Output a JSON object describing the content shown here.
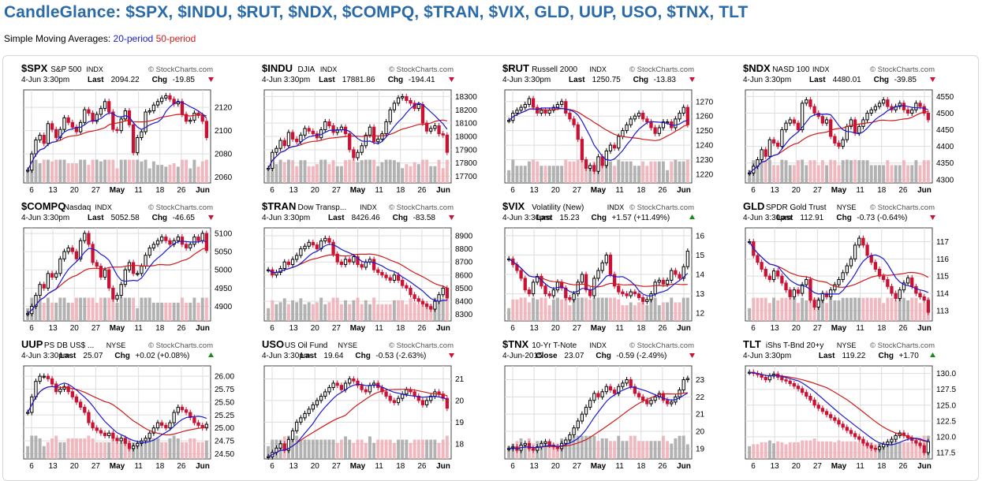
{
  "page": {
    "title": "CandleGlance: $SPX, $INDU, $RUT, $NDX, $COMPQ, $TRAN, $VIX, GLD, UUP, USO, $TNX, TLT",
    "legend_prefix": "Simple Moving Averages:",
    "legend_ma20": "20-period",
    "legend_ma50": "50-period",
    "watermark": "© StockCharts.com"
  },
  "colors": {
    "title": "#2a6aa8",
    "up": "#000000",
    "down": "#cc1133",
    "ma20": "#1a1ad0",
    "ma50": "#d01a1a",
    "volume": "#aaaaaa",
    "volume_down": "#f0b0b8",
    "grid": "#dddddd"
  },
  "chart_data": [
    {
      "symbol": "$SPX",
      "name": "S&P 500",
      "exchange": "INDX",
      "date": "4-Jun 3:30pm",
      "last_label": "Last",
      "last": "2094.22",
      "chg_label": "Chg",
      "chg": "-19.85",
      "direction": "down",
      "y_ticks": [
        "2120",
        "2100",
        "2080",
        "2060"
      ],
      "y_tick_values": [
        2120,
        2100,
        2080,
        2060
      ],
      "ylim": [
        2055,
        2135
      ],
      "x_ticks": [
        "6",
        "13",
        "20",
        "27",
        "May",
        "11",
        "18",
        "26",
        "Jun"
      ],
      "closes": [
        2066,
        2080,
        2092,
        2096,
        2089,
        2106,
        2101,
        2094,
        2101,
        2111,
        2107,
        2103,
        2099,
        2107,
        2118,
        2115,
        2108,
        2114,
        2119,
        2125,
        2116,
        2101,
        2100,
        2110,
        2117,
        2105,
        2081,
        2094,
        2099,
        2116,
        2117,
        2122,
        2125,
        2128,
        2130,
        2127,
        2123,
        2125,
        2114,
        2108,
        2109,
        2115,
        2113,
        2108,
        2094
      ]
    },
    {
      "symbol": "$INDU",
      "name": "DJIA",
      "exchange": "INDX",
      "date": "4-Jun 3:30pm",
      "last_label": "Last",
      "last": "17881.86",
      "chg_label": "Chg",
      "chg": "-194.41",
      "direction": "down",
      "y_ticks": [
        "18300",
        "18200",
        "18100",
        "18000",
        "17900",
        "17800",
        "17700"
      ],
      "y_tick_values": [
        18300,
        18200,
        18100,
        18000,
        17900,
        17800,
        17700
      ],
      "ylim": [
        17650,
        18350
      ],
      "x_ticks": [
        "6",
        "13",
        "20",
        "27",
        "May",
        "11",
        "18",
        "26",
        "Jun"
      ],
      "closes": [
        17760,
        17880,
        17910,
        17970,
        17930,
        18030,
        17980,
        17960,
        18010,
        18060,
        18040,
        18020,
        17990,
        18050,
        18110,
        18080,
        18030,
        18050,
        18070,
        18020,
        17900,
        17840,
        17880,
        17930,
        18010,
        18070,
        17960,
        17980,
        18020,
        18110,
        18200,
        18250,
        18290,
        18300,
        18270,
        18250,
        18210,
        18240,
        18100,
        18040,
        18060,
        18080,
        18020,
        18010,
        17880
      ]
    },
    {
      "symbol": "$RUT",
      "name": "Russell 2000",
      "exchange": "INDX",
      "date": "4-Jun 3:30pm",
      "last_label": "Last",
      "last": "1250.75",
      "chg_label": "Chg",
      "chg": "-13.83",
      "direction": "down",
      "y_ticks": [
        "1270",
        "1260",
        "1250",
        "1240",
        "1230",
        "1220"
      ],
      "y_tick_values": [
        1270,
        1260,
        1250,
        1240,
        1230,
        1220
      ],
      "ylim": [
        1214,
        1278
      ],
      "x_ticks": [
        "6",
        "13",
        "20",
        "27",
        "May",
        "11",
        "18",
        "26",
        "Jun"
      ],
      "closes": [
        1257,
        1262,
        1264,
        1266,
        1268,
        1272,
        1266,
        1262,
        1264,
        1262,
        1264,
        1266,
        1268,
        1270,
        1262,
        1258,
        1254,
        1244,
        1230,
        1224,
        1226,
        1222,
        1232,
        1226,
        1236,
        1240,
        1238,
        1246,
        1250,
        1254,
        1258,
        1260,
        1262,
        1258,
        1256,
        1252,
        1248,
        1252,
        1256,
        1256,
        1252,
        1258,
        1262,
        1266,
        1254
      ]
    },
    {
      "symbol": "$NDX",
      "name": "NASD 100",
      "exchange": "INDX",
      "date": "4-Jun 3:30pm",
      "last_label": "Last",
      "last": "4480.01",
      "chg_label": "Chg",
      "chg": "-39.85",
      "direction": "down",
      "y_ticks": [
        "4550",
        "4500",
        "4450",
        "4400",
        "4350",
        "4300"
      ],
      "y_tick_values": [
        4550,
        4500,
        4450,
        4400,
        4350,
        4300
      ],
      "ylim": [
        4290,
        4570
      ],
      "x_ticks": [
        "6",
        "13",
        "20",
        "27",
        "May",
        "11",
        "18",
        "26",
        "Jun"
      ],
      "closes": [
        4320,
        4340,
        4360,
        4390,
        4370,
        4420,
        4410,
        4400,
        4450,
        4470,
        4480,
        4470,
        4450,
        4530,
        4540,
        4520,
        4500,
        4490,
        4470,
        4480,
        4430,
        4410,
        4400,
        4420,
        4460,
        4480,
        4440,
        4460,
        4480,
        4500,
        4510,
        4520,
        4530,
        4540,
        4520,
        4510,
        4520,
        4530,
        4510,
        4500,
        4510,
        4530,
        4520,
        4500,
        4480
      ]
    },
    {
      "symbol": "$COMPQ",
      "name": "Nasdaq",
      "exchange": "INDX",
      "date": "4-Jun 3:30pm",
      "last_label": "Last",
      "last": "5052.58",
      "chg_label": "Chg",
      "chg": "-46.65",
      "direction": "down",
      "y_ticks": [
        "5100",
        "5050",
        "5000",
        "4950",
        "4900"
      ],
      "y_tick_values": [
        5100,
        5050,
        5000,
        4950,
        4900
      ],
      "ylim": [
        4860,
        5115
      ],
      "x_ticks": [
        "6",
        "13",
        "20",
        "27",
        "May",
        "11",
        "18",
        "26",
        "Jun"
      ],
      "closes": [
        4880,
        4900,
        4930,
        4960,
        4950,
        4990,
        4980,
        4990,
        5030,
        5050,
        5060,
        5050,
        5030,
        5080,
        5100,
        5070,
        5020,
        5010,
        4980,
        5000,
        4950,
        4920,
        4930,
        4960,
        5000,
        5020,
        4990,
        4990,
        5010,
        5040,
        5060,
        5070,
        5080,
        5090,
        5080,
        5070,
        5080,
        5090,
        5070,
        5060,
        5070,
        5090,
        5080,
        5100,
        5053
      ]
    },
    {
      "symbol": "$TRAN",
      "name": "Dow Transp...",
      "exchange": "INDX",
      "date": "4-Jun 3:30pm",
      "last_label": "Last",
      "last": "8426.46",
      "chg_label": "Chg",
      "chg": "-83.58",
      "direction": "down",
      "y_ticks": [
        "8900",
        "8800",
        "8700",
        "8600",
        "8500",
        "8400",
        "8300"
      ],
      "y_tick_values": [
        8900,
        8800,
        8700,
        8600,
        8500,
        8400,
        8300
      ],
      "ylim": [
        8250,
        8960
      ],
      "x_ticks": [
        "6",
        "13",
        "20",
        "27",
        "May",
        "11",
        "18",
        "26",
        "Jun"
      ],
      "closes": [
        8640,
        8600,
        8620,
        8650,
        8700,
        8680,
        8720,
        8750,
        8800,
        8820,
        8850,
        8830,
        8800,
        8860,
        8880,
        8850,
        8760,
        8700,
        8680,
        8720,
        8700,
        8740,
        8680,
        8660,
        8700,
        8720,
        8640,
        8620,
        8600,
        8580,
        8560,
        8600,
        8560,
        8520,
        8500,
        8450,
        8420,
        8400,
        8380,
        8360,
        8340,
        8400,
        8450,
        8500,
        8426
      ]
    },
    {
      "symbol": "$VIX",
      "name": "Volatility (New)",
      "exchange": "INDX",
      "date": "4-Jun 3:30pm",
      "last_label": "Last",
      "last": "15.23",
      "chg_label": "Chg",
      "chg": "+1.57 (+11.49%)",
      "direction": "up",
      "y_ticks": [
        "16",
        "15",
        "14",
        "13",
        "12"
      ],
      "y_tick_values": [
        16,
        15,
        14,
        13,
        12
      ],
      "ylim": [
        11.6,
        16.4
      ],
      "x_ticks": [
        "6",
        "13",
        "20",
        "27",
        "May",
        "11",
        "18",
        "26",
        "Jun"
      ],
      "closes": [
        14.8,
        14.5,
        14.2,
        13.8,
        13.2,
        13.0,
        13.6,
        13.9,
        13.4,
        13.0,
        12.9,
        13.2,
        13.6,
        13.3,
        12.8,
        12.7,
        13.0,
        13.6,
        14.0,
        13.2,
        12.9,
        13.8,
        14.2,
        14.6,
        15.0,
        14.0,
        13.4,
        13.1,
        13.0,
        12.9,
        13.1,
        13.0,
        12.8,
        12.6,
        12.7,
        13.0,
        13.6,
        13.7,
        13.5,
        13.7,
        14.2,
        14.0,
        13.8,
        14.4,
        15.2
      ]
    },
    {
      "symbol": "GLD",
      "name": "SPDR Gold Trust",
      "exchange": "NYSE",
      "date": "4-Jun 3:30pm",
      "last_label": "Last",
      "last": "112.91",
      "chg_label": "Chg",
      "chg": "-0.73 (-0.64%)",
      "direction": "down",
      "y_ticks": [
        "117",
        "116",
        "115",
        "114",
        "113"
      ],
      "y_tick_values": [
        117,
        116,
        115,
        114,
        113
      ],
      "ylim": [
        112.4,
        117.8
      ],
      "x_ticks": [
        "6",
        "13",
        "20",
        "27",
        "May",
        "11",
        "18",
        "26",
        "Jun"
      ],
      "closes": [
        117.0,
        116.2,
        115.8,
        115.4,
        115.0,
        114.8,
        115.3,
        115.0,
        114.6,
        114.2,
        113.8,
        114.2,
        114.0,
        114.5,
        114.8,
        113.6,
        113.2,
        113.6,
        114.0,
        113.8,
        114.2,
        114.5,
        114.8,
        115.2,
        115.6,
        116.0,
        116.8,
        117.2,
        116.8,
        116.2,
        115.8,
        115.4,
        115.0,
        114.8,
        114.4,
        114.0,
        113.7,
        114.2,
        114.6,
        114.9,
        114.4,
        114.0,
        113.8,
        113.6,
        112.9
      ]
    },
    {
      "symbol": "UUP",
      "name": "PS DB US$ ...",
      "exchange": "NYSE",
      "date": "4-Jun 3:30pm",
      "last_label": "Last",
      "last": "25.07",
      "chg_label": "Chg",
      "chg": "+0.02 (+0.08%)",
      "direction": "up",
      "y_ticks": [
        "26.00",
        "25.75",
        "25.50",
        "25.25",
        "25.00",
        "24.75",
        "24.50"
      ],
      "y_tick_values": [
        26.0,
        25.75,
        25.5,
        25.25,
        25.0,
        24.75,
        24.5
      ],
      "ylim": [
        24.4,
        26.2
      ],
      "x_ticks": [
        "6",
        "13",
        "20",
        "27",
        "May",
        "11",
        "18",
        "26",
        "Jun"
      ],
      "closes": [
        25.3,
        25.6,
        25.9,
        26.0,
        26.0,
        25.95,
        25.85,
        25.7,
        25.75,
        25.8,
        25.7,
        25.6,
        25.5,
        25.4,
        25.3,
        25.1,
        25.0,
        24.95,
        24.9,
        24.85,
        24.9,
        24.8,
        24.75,
        24.8,
        24.7,
        24.6,
        24.65,
        24.7,
        24.75,
        24.8,
        24.9,
        25.0,
        25.1,
        25.05,
        25.0,
        25.1,
        25.3,
        25.4,
        25.35,
        25.3,
        25.2,
        25.1,
        25.05,
        25.0,
        25.07
      ]
    },
    {
      "symbol": "USO",
      "name": "US Oil Fund",
      "exchange": "NYSE",
      "date": "4-Jun 3:30pm",
      "last_label": "Last",
      "last": "19.64",
      "chg_label": "Chg",
      "chg": "-0.53 (-2.63%)",
      "direction": "down",
      "y_ticks": [
        "21",
        "20",
        "19",
        "18"
      ],
      "y_tick_values": [
        21,
        20,
        19,
        18
      ],
      "ylim": [
        17.3,
        21.6
      ],
      "x_ticks": [
        "6",
        "13",
        "20",
        "27",
        "May",
        "11",
        "18",
        "26",
        "Jun"
      ],
      "closes": [
        17.4,
        17.6,
        17.8,
        18.0,
        17.7,
        18.2,
        18.6,
        19.0,
        19.2,
        19.4,
        19.6,
        19.8,
        20.0,
        20.2,
        20.4,
        20.6,
        20.8,
        20.7,
        20.5,
        20.8,
        21.0,
        20.9,
        20.7,
        20.5,
        20.4,
        20.7,
        20.8,
        20.6,
        20.4,
        20.2,
        20.0,
        19.9,
        20.1,
        20.3,
        20.5,
        20.4,
        20.2,
        20.0,
        19.8,
        20.0,
        20.2,
        20.4,
        20.3,
        20.1,
        19.64
      ]
    },
    {
      "symbol": "$TNX",
      "name": "10-Yr T-Note",
      "exchange": "INDX",
      "date": "4-Jun-2015",
      "last_label": "Close",
      "last": "23.07",
      "chg_label": "Chg",
      "chg": "-0.59 (-2.49%)",
      "direction": "down",
      "y_ticks": [
        "23",
        "22",
        "21",
        "20",
        "19"
      ],
      "y_tick_values": [
        23,
        22,
        21,
        20,
        19
      ],
      "ylim": [
        18.4,
        23.8
      ],
      "x_ticks": [
        "6",
        "13",
        "20",
        "27",
        "May",
        "11",
        "18",
        "26",
        "Jun"
      ],
      "closes": [
        19.0,
        19.1,
        18.9,
        19.2,
        19.3,
        19.0,
        18.9,
        19.1,
        19.3,
        19.4,
        19.2,
        19.1,
        19.0,
        19.3,
        19.5,
        19.8,
        20.2,
        20.6,
        21.0,
        21.4,
        21.8,
        22.2,
        22.0,
        22.3,
        22.6,
        22.4,
        22.2,
        22.6,
        22.8,
        23.0,
        22.6,
        22.2,
        22.0,
        21.8,
        21.6,
        21.8,
        22.0,
        22.2,
        21.8,
        21.6,
        21.7,
        22.0,
        22.4,
        23.0,
        23.07
      ]
    },
    {
      "symbol": "TLT",
      "name": "iShs T-Bnd 20+y",
      "exchange": "NYSE",
      "date": "4-Jun 3:30pm",
      "last_label": "Last",
      "last": "119.22",
      "chg_label": "Chg",
      "chg": "+1.70",
      "direction": "up",
      "y_ticks": [
        "130.0",
        "127.5",
        "125.0",
        "122.5",
        "120.0",
        "117.5"
      ],
      "y_tick_values": [
        130.0,
        127.5,
        125.0,
        122.5,
        120.0,
        117.5
      ],
      "ylim": [
        116.5,
        131.2
      ],
      "x_ticks": [
        "6",
        "13",
        "20",
        "27",
        "May",
        "11",
        "18",
        "26",
        "Jun"
      ],
      "closes": [
        130.2,
        130.0,
        129.8,
        129.4,
        129.0,
        129.6,
        129.9,
        129.4,
        129.0,
        128.8,
        128.4,
        128.0,
        127.6,
        127.0,
        126.4,
        125.8,
        125.0,
        124.5,
        124.0,
        123.5,
        123.0,
        122.6,
        122.0,
        121.5,
        121.0,
        120.5,
        120.0,
        119.6,
        119.0,
        118.6,
        118.2,
        118.0,
        118.4,
        118.8,
        119.2,
        119.6,
        120.2,
        120.6,
        120.2,
        119.8,
        119.4,
        119.0,
        118.6,
        117.5,
        119.22
      ]
    }
  ]
}
